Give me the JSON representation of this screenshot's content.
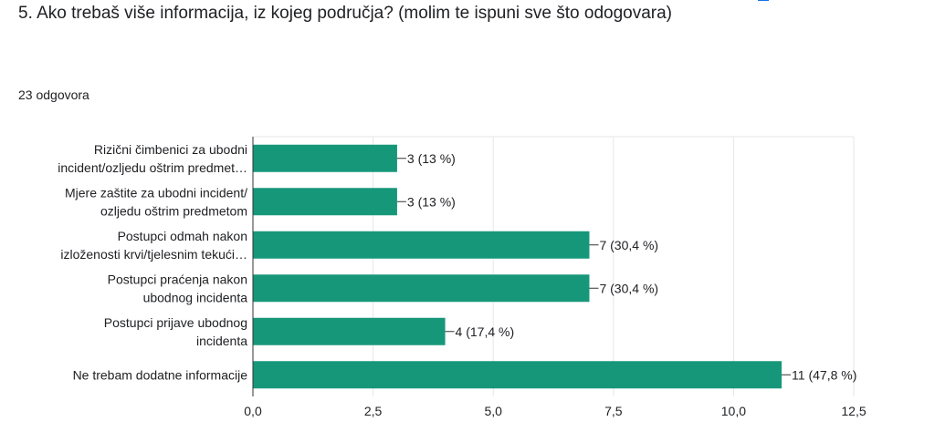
{
  "question": {
    "title": "5. Ako trebaš više informacija, iz kojeg područja? (molim te ispuni sve što odogovara)",
    "responses_count": "23 odgovora"
  },
  "colors": {
    "bar": "#17977a",
    "grid": "#e6e6e6",
    "axis": "#333333"
  },
  "chart_data": {
    "type": "bar",
    "orientation": "horizontal",
    "categories": [
      [
        "Rizični čimbenici za ubodni",
        "incident/ozljedu oštrim predmet…"
      ],
      [
        "Mjere zaštite za ubodni incident/",
        "ozljedu oštrim predmetom"
      ],
      [
        "Postupci odmah nakon",
        "izloženosti krvi/tjelesnim tekući…"
      ],
      [
        "Postupci praćenja nakon",
        "ubodnog incidenta"
      ],
      [
        "Postupci prijave ubodnog",
        "incidenta"
      ],
      [
        "Ne trebam dodatne informacije"
      ]
    ],
    "values": [
      3,
      3,
      7,
      7,
      4,
      11
    ],
    "data_labels": [
      "3 (13 %)",
      "3 (13 %)",
      "7 (30,4 %)",
      "7 (30,4 %)",
      "4 (17,4 %)",
      "11 (47,8 %)"
    ],
    "xlim": [
      0,
      12.5
    ],
    "ticks": [
      0,
      2.5,
      5,
      7.5,
      10,
      12.5
    ],
    "tick_labels": [
      "0,0",
      "2,5",
      "5,0",
      "7,5",
      "10,0",
      "12,5"
    ],
    "grid": true
  }
}
